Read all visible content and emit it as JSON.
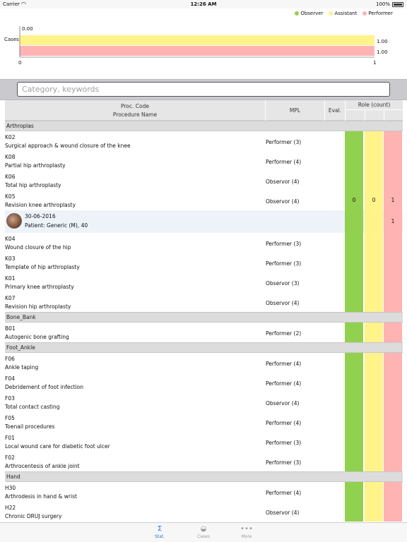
{
  "status_bar": {
    "carrier": "Carrier",
    "time": "12:26 AM",
    "battery": "100%"
  },
  "colors": {
    "observer": "#92d050",
    "assistant": "#fff38a",
    "performer": "#ffb3b3",
    "accent": "#1a7ad9"
  },
  "chart_data": {
    "type": "bar",
    "orientation": "horizontal",
    "categories": [
      "Cases"
    ],
    "series": [
      {
        "name": "Observer",
        "values": [
          0.0
        ],
        "color": "#92d050"
      },
      {
        "name": "Assistant",
        "values": [
          1.0
        ],
        "color": "#fff38a"
      },
      {
        "name": "Performer",
        "values": [
          1.0
        ],
        "color": "#ffb3b3"
      }
    ],
    "data_labels": [
      "0.00",
      "1.00",
      "1.00"
    ],
    "xlim": [
      0,
      1
    ],
    "x_ticks": [
      "0",
      "1"
    ],
    "legend_position": "top-right",
    "grid": false
  },
  "search": {
    "placeholder": "Category, keywords"
  },
  "table": {
    "headers": {
      "code": "Proc. Code",
      "name": "Procedure Name",
      "mpl": "MPL",
      "eval": "Eval.",
      "role": "Role (count)"
    },
    "sections": [
      {
        "title": "Arthroplas",
        "rows": [
          {
            "code": "K02",
            "name": "Surgical approach & wound closure of the knee",
            "mpl": "Performer (3)"
          },
          {
            "code": "K08",
            "name": "Partial hip arthroplasty",
            "mpl": "Performer (4)"
          },
          {
            "code": "K06",
            "name": "Total hip arthroplasty",
            "mpl": "Observor (4)"
          },
          {
            "code": "K05",
            "name": "Revision knee arthroplasty",
            "mpl": "Observor (4)",
            "counts": [
              "0",
              "0",
              "1"
            ]
          },
          {
            "case": true,
            "date": "30-06-2016",
            "patient": "Patient: Generic (M), 40",
            "counts": [
              "",
              "",
              "1"
            ]
          },
          {
            "code": "K04",
            "name": "Wound closure of the hip",
            "mpl": "Performer (3)"
          },
          {
            "code": "K03",
            "name": "Template of hip arthroplasty",
            "mpl": "Performer (3)"
          },
          {
            "code": "K01",
            "name": "Primary knee arthroplasty",
            "mpl": "Observor (3)"
          },
          {
            "code": "K07",
            "name": "Revision hip arthroplasty",
            "mpl": "Observor (4)"
          }
        ]
      },
      {
        "title": "Bone_Bank",
        "rows": [
          {
            "code": "B01",
            "name": "Autogenic bone grafting",
            "mpl": "Performer (2)"
          }
        ]
      },
      {
        "title": "Foot_Ankle",
        "rows": [
          {
            "code": "F06",
            "name": "Ankle taping",
            "mpl": "Performer (4)"
          },
          {
            "code": "F04",
            "name": "Debridement of foot infection",
            "mpl": "Performer (4)"
          },
          {
            "code": "F03",
            "name": "Total contact casting",
            "mpl": "Observor (4)"
          },
          {
            "code": "F05",
            "name": "Toenail procedures",
            "mpl": "Performer (4)"
          },
          {
            "code": "F01",
            "name": "Local wound care for diabetic foot ulcer",
            "mpl": "Performer (3)"
          },
          {
            "code": "F02",
            "name": "Arthrocentesis of ankle joint",
            "mpl": "Performer (3)"
          }
        ]
      },
      {
        "title": "Hand",
        "rows": [
          {
            "code": "H30",
            "name": "Arthrodesis in hand & wrist",
            "mpl": "Performer (4)"
          },
          {
            "code": "H22",
            "name": "Chronic DRUJ surgery",
            "mpl": "Observor (4)"
          }
        ]
      }
    ]
  },
  "tabbar": {
    "tabs": [
      {
        "label": "Stat.",
        "icon": "sigma-icon",
        "active": true
      },
      {
        "label": "Cases",
        "icon": "person-icon",
        "active": false
      },
      {
        "label": "More",
        "icon": "more-icon",
        "active": false
      }
    ]
  }
}
